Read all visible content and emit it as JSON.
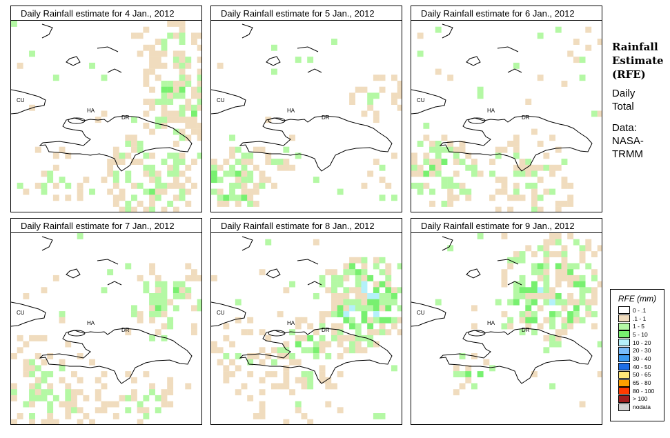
{
  "panels": [
    {
      "title": "Daily Rainfall estimate for  4 Jan., 2012"
    },
    {
      "title": "Daily Rainfall estimate for  5 Jan., 2012"
    },
    {
      "title": "Daily Rainfall estimate for  6 Jan., 2012"
    },
    {
      "title": "Daily Rainfall estimate for  7 Jan., 2012"
    },
    {
      "title": "Daily Rainfall estimate for  8 Jan., 2012"
    },
    {
      "title": "Daily Rainfall estimate for  9 Jan., 2012"
    }
  ],
  "map_labels": {
    "cu": "CU",
    "ha": "HA",
    "dr": "DR"
  },
  "side": {
    "title1": "Rainfall",
    "title2": "Estimate",
    "title3": "(RFE)",
    "l1": "Daily",
    "l2": "Total",
    "l3": "Data:",
    "l4": "NASA-",
    "l5": "TRMM"
  },
  "legend": {
    "title": "RFE (mm)",
    "items": [
      {
        "label": "0 - .1",
        "color": "#ffffff"
      },
      {
        "label": ".1 - 1",
        "color": "#f0dcbe"
      },
      {
        "label": "1 - 5",
        "color": "#b4f8a4"
      },
      {
        "label": "5 - 10",
        "color": "#78f070"
      },
      {
        "label": "10 - 20",
        "color": "#b4f0fa"
      },
      {
        "label": "20 - 30",
        "color": "#78bcfa"
      },
      {
        "label": "30 - 40",
        "color": "#3c9af0"
      },
      {
        "label": "40 - 50",
        "color": "#1e6ee6"
      },
      {
        "label": "50 - 65",
        "color": "#ffe678"
      },
      {
        "label": "65 - 80",
        "color": "#ffa000"
      },
      {
        "label": "80 - 100",
        "color": "#ff3c00"
      },
      {
        "label": "> 100",
        "color": "#a01e1e"
      },
      {
        "label": "nodata",
        "color": "#d2d2d2"
      }
    ]
  }
}
